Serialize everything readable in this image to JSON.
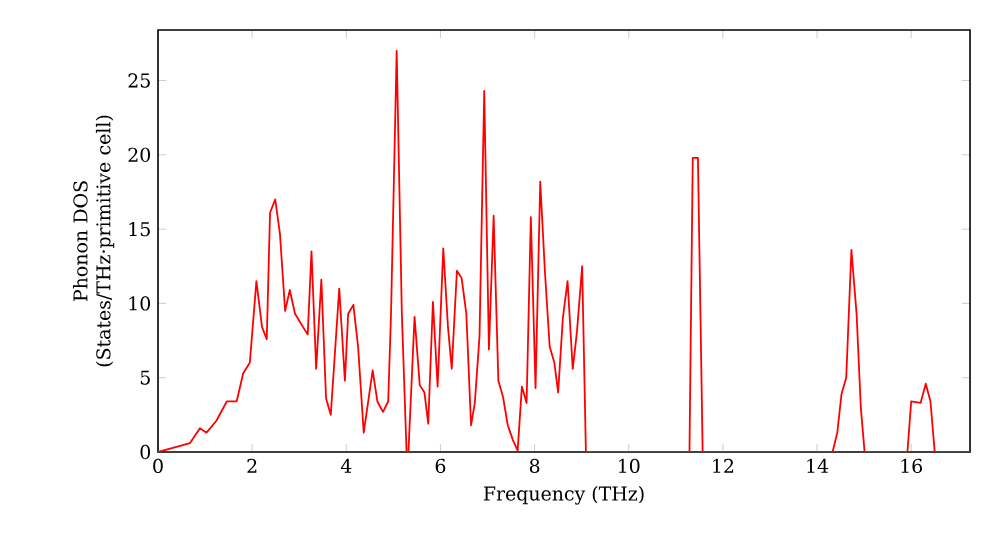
{
  "chart_data": {
    "type": "line",
    "xlabel": "Frequency (THz)",
    "ylabel": "Phonon DOS (States/THz·primitive cell)",
    "xlim": [
      0,
      17.25
    ],
    "ylim": [
      0,
      28.4
    ],
    "xticks": [
      0,
      2,
      4,
      6,
      8,
      10,
      12,
      14,
      16
    ],
    "yticks": [
      0,
      5,
      10,
      15,
      20,
      25
    ],
    "grid": false,
    "series": [
      {
        "color": "#ff0000",
        "x": [
          0,
          0.68,
          0.89,
          1.03,
          1.24,
          1.46,
          1.67,
          1.81,
          1.95,
          2.09,
          2.21,
          2.31,
          2.38,
          2.49,
          2.59,
          2.7,
          2.8,
          2.91,
          3.18,
          3.26,
          3.36,
          3.47,
          3.57,
          3.67,
          3.85,
          3.97,
          4.04,
          4.15,
          4.25,
          4.37,
          4.56,
          4.66,
          4.78,
          4.89,
          4.95,
          5.07,
          5.18,
          5.28,
          5.32,
          5.45,
          5.56,
          5.66,
          5.74,
          5.84,
          5.94,
          6.06,
          6.16,
          6.24,
          6.35,
          6.45,
          6.55,
          6.65,
          6.73,
          6.83,
          6.93,
          7.03,
          7.13,
          7.23,
          7.33,
          7.43,
          7.54,
          7.64,
          7.73,
          7.83,
          7.92,
          8.02,
          8.12,
          8.22,
          8.32,
          8.42,
          8.5,
          8.6,
          8.7,
          8.81,
          8.9,
          9.01,
          9.09,
          11.29,
          11.36,
          11.47,
          11.57,
          14.33,
          14.43,
          14.52,
          14.62,
          14.73,
          14.84,
          14.93,
          15.01,
          15.92,
          16.0,
          16.2,
          16.31,
          16.41,
          16.5,
          17.25
        ],
        "values": [
          0,
          0.6,
          1.6,
          1.3,
          2.1,
          3.4,
          3.4,
          5.3,
          6.0,
          11.5,
          8.4,
          7.6,
          16.1,
          17.0,
          14.7,
          9.5,
          10.9,
          9.3,
          7.9,
          13.5,
          5.6,
          11.6,
          3.6,
          2.5,
          11.0,
          4.8,
          9.3,
          9.9,
          7.1,
          1.3,
          5.5,
          3.4,
          2.7,
          3.4,
          9.3,
          27.0,
          9.3,
          0,
          0,
          9.1,
          4.5,
          4.0,
          1.9,
          10.1,
          4.4,
          13.7,
          8.4,
          5.6,
          12.2,
          11.7,
          9.3,
          1.8,
          3.3,
          7.8,
          24.3,
          6.9,
          15.9,
          4.8,
          3.7,
          1.8,
          0.8,
          0.1,
          4.4,
          3.3,
          15.8,
          4.3,
          18.2,
          12.1,
          7.1,
          6.0,
          4.0,
          9.0,
          11.5,
          5.6,
          8.1,
          12.5,
          0,
          0,
          19.8,
          19.8,
          0,
          0,
          1.3,
          3.9,
          5.0,
          13.6,
          9.3,
          3.0,
          0,
          0,
          3.4,
          3.3,
          4.6,
          3.4,
          0,
          0
        ]
      }
    ]
  }
}
